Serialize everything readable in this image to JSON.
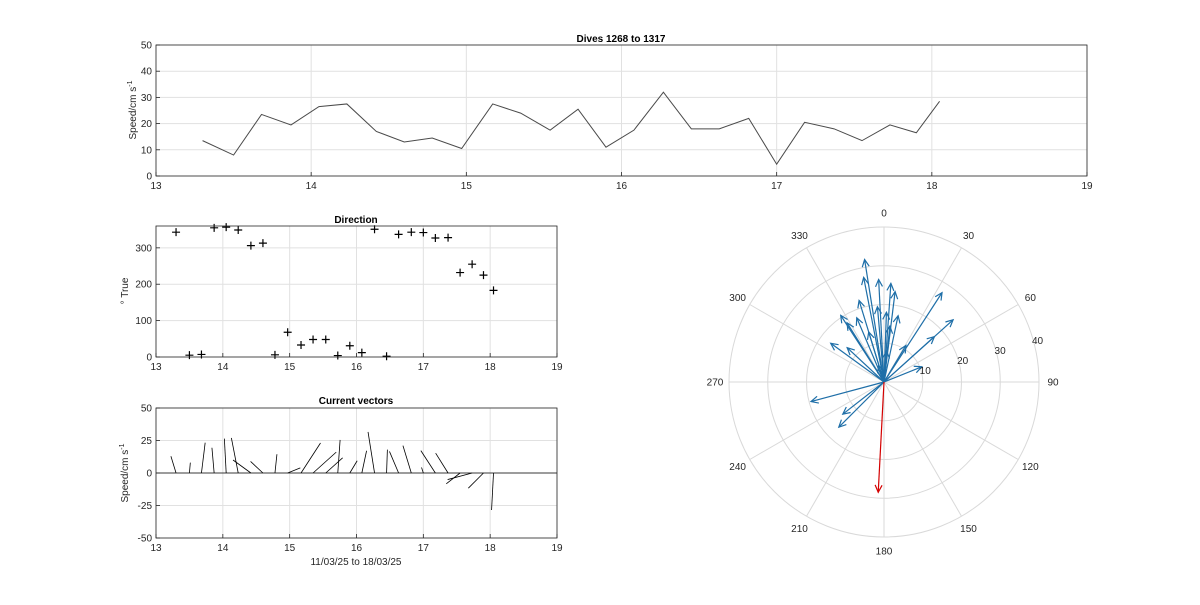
{
  "chart_data": [
    {
      "type": "line",
      "title": "Dives 1268 to 1317",
      "ylabel": "Speed/cm s",
      "ylabel_sup": "-1",
      "xlim": [
        13,
        19
      ],
      "ylim": [
        0,
        50
      ],
      "xticks": [
        13,
        14,
        15,
        16,
        17,
        18,
        19
      ],
      "yticks": [
        0,
        10,
        20,
        30,
        40,
        50
      ],
      "grid": true,
      "color": "#4a4a4a",
      "x": [
        13.3,
        13.5,
        13.68,
        13.87,
        14.05,
        14.23,
        14.42,
        14.6,
        14.78,
        14.97,
        15.17,
        15.35,
        15.54,
        15.72,
        15.9,
        16.08,
        16.27,
        16.45,
        16.63,
        16.82,
        17.0,
        17.18,
        17.37,
        17.55,
        17.73,
        17.9,
        18.05
      ],
      "y": [
        13.5,
        8,
        23.5,
        19.5,
        26.5,
        27.5,
        17,
        13,
        14.5,
        10.5,
        27.5,
        24,
        17.5,
        25.5,
        11,
        17.5,
        32,
        18,
        18,
        22,
        4.5,
        20.5,
        18,
        13.5,
        19.5,
        16.5,
        28.5
      ]
    },
    {
      "type": "scatter",
      "title": "Direction",
      "ylabel": "° True",
      "xlim": [
        13,
        19
      ],
      "ylim": [
        0,
        360
      ],
      "xticks": [
        13,
        14,
        15,
        16,
        17,
        18,
        19
      ],
      "yticks": [
        0,
        100,
        200,
        300
      ],
      "grid": true,
      "marker": "+",
      "x": [
        13.3,
        13.5,
        13.68,
        13.87,
        14.05,
        14.23,
        14.42,
        14.6,
        14.78,
        14.97,
        15.17,
        15.35,
        15.54,
        15.72,
        15.9,
        16.08,
        16.27,
        16.45,
        16.63,
        16.82,
        17.0,
        17.18,
        17.37,
        17.55,
        17.73,
        17.9,
        18.05
      ],
      "y": [
        343,
        5,
        7,
        355,
        357,
        349,
        306,
        313,
        6,
        68,
        33,
        48,
        48,
        4,
        31,
        12,
        351,
        2,
        337,
        343,
        342,
        327,
        328,
        232,
        255,
        225,
        183
      ]
    },
    {
      "type": "quiver",
      "title": "Current vectors",
      "ylabel": "Speed/cm s",
      "ylabel_sup": "-1",
      "xlabel": "11/03/25 to 18/03/25",
      "xlim": [
        13,
        19
      ],
      "ylim": [
        -50,
        50
      ],
      "xticks": [
        13,
        14,
        15,
        16,
        17,
        18,
        19
      ],
      "yticks": [
        -50,
        -25,
        0,
        25,
        50
      ],
      "grid": true,
      "color": "#000000",
      "x": [
        13.3,
        13.5,
        13.68,
        13.87,
        14.05,
        14.23,
        14.42,
        14.6,
        14.78,
        14.97,
        15.17,
        15.35,
        15.54,
        15.72,
        15.9,
        16.08,
        16.27,
        16.45,
        16.63,
        16.82,
        17.0,
        17.18,
        17.37,
        17.55,
        17.73,
        17.9,
        18.05
      ],
      "speed": [
        13.5,
        8,
        23.5,
        19.5,
        26.5,
        27.5,
        17,
        13,
        14.5,
        10.5,
        27.5,
        24,
        17.5,
        25.5,
        11,
        17.5,
        32,
        18,
        18,
        22,
        4.5,
        20.5,
        18,
        13.5,
        19.5,
        16.5,
        28.5
      ],
      "direction": [
        343,
        5,
        7,
        355,
        357,
        349,
        306,
        313,
        6,
        68,
        33,
        48,
        48,
        4,
        31,
        12,
        351,
        2,
        337,
        343,
        342,
        327,
        328,
        232,
        255,
        225,
        183
      ]
    },
    {
      "type": "polar-compass",
      "angle_labels": [
        "0",
        "30",
        "60",
        "90",
        "120",
        "150",
        "180",
        "210",
        "240",
        "270",
        "300",
        "330"
      ],
      "radial_ticks": [
        10,
        20,
        30,
        40
      ],
      "rmax": 40,
      "color": "#1f6fa8",
      "highlight_color": "#d40000",
      "highlight_index": 26,
      "speed": [
        13.5,
        8,
        23.5,
        19.5,
        26.5,
        27.5,
        17,
        13,
        14.5,
        10.5,
        27.5,
        24,
        17.5,
        25.5,
        11,
        17.5,
        32,
        18,
        18,
        22,
        4.5,
        20.5,
        18,
        13.5,
        19.5,
        16.5,
        28.5
      ],
      "direction": [
        343,
        5,
        7,
        355,
        357,
        349,
        306,
        313,
        6,
        68,
        33,
        48,
        48,
        4,
        31,
        12,
        351,
        2,
        337,
        343,
        342,
        327,
        328,
        232,
        255,
        225,
        183
      ]
    }
  ]
}
